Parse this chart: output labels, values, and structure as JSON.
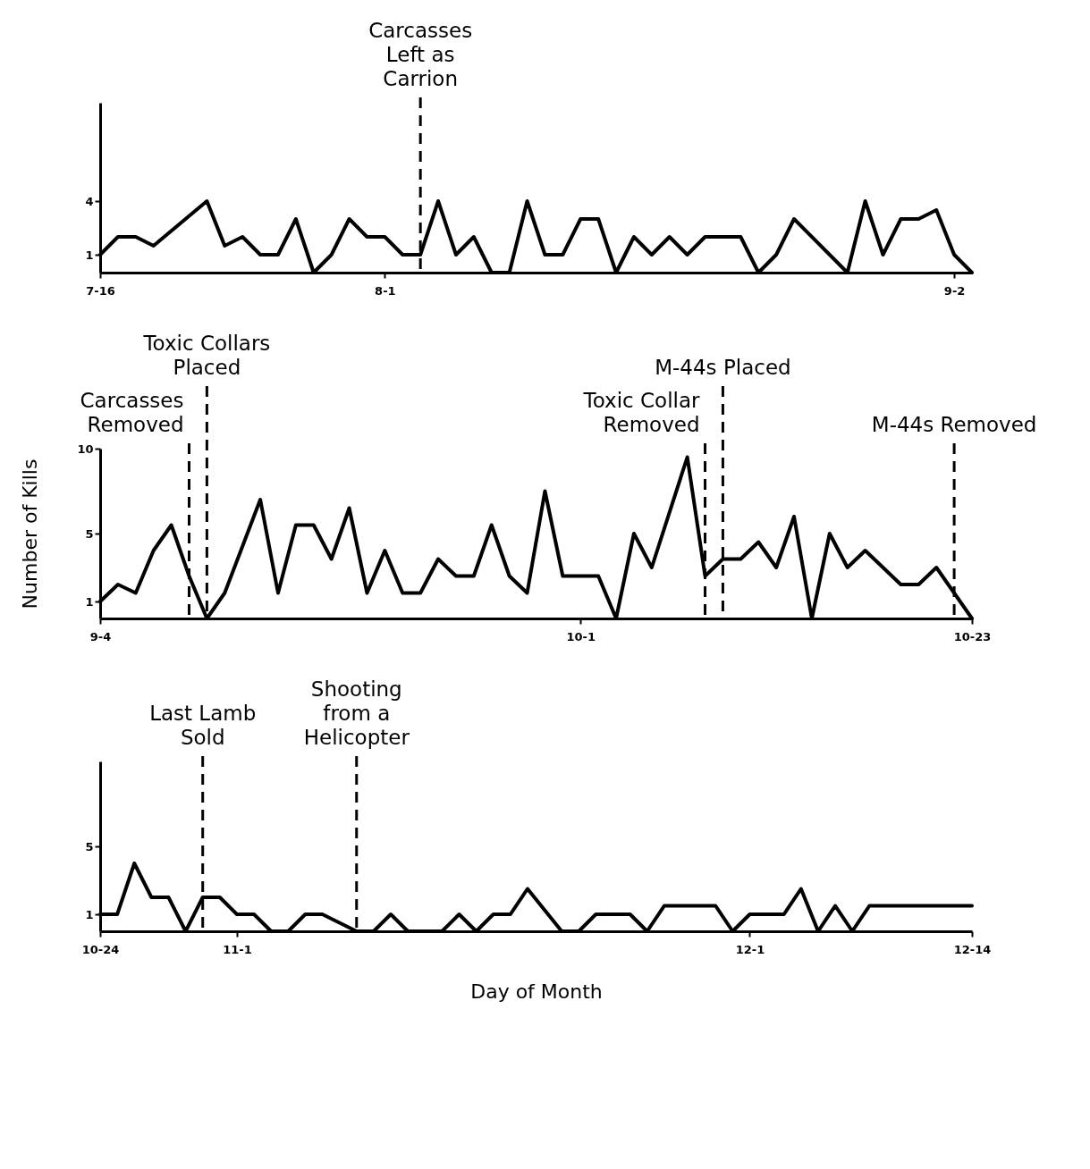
{
  "chart_data": [
    {
      "type": "line",
      "color": "#000000",
      "x": [
        "--07-16",
        "--07-17",
        "--07-18",
        "--07-19",
        "--07-22",
        "--07-23",
        "--07-24",
        "--07-25",
        "--07-26",
        "--07-27",
        "--07-28",
        "--07-29",
        "--07-30",
        "--07-31",
        "--08-01",
        "--08-02",
        "--08-03",
        "--08-04",
        "--08-05",
        "--08-06",
        "--08-07",
        "--08-08",
        "--08-09",
        "--08-10",
        "--08-11",
        "--08-12",
        "--08-13",
        "--08-14",
        "--08-15",
        "--08-16",
        "--08-17",
        "--08-18",
        "--08-19",
        "--08-21",
        "--08-22",
        "--08-23",
        "--08-24",
        "--08-27",
        "--08-28",
        "--08-29",
        "--08-30",
        "--08-31",
        "--09-01",
        "--09-02",
        "--09-03"
      ],
      "values": [
        1,
        2,
        2,
        1.5,
        4,
        1.5,
        2,
        1,
        1,
        3,
        0,
        1,
        3,
        2,
        2,
        1,
        1,
        4,
        1,
        2,
        0,
        0,
        4,
        1,
        1,
        3,
        3,
        0,
        2,
        1,
        2,
        1,
        2,
        2,
        0,
        1,
        3,
        0,
        4,
        1,
        3,
        3,
        3.5,
        1,
        0
      ],
      "xlim": [
        "--07-16",
        "--09-03"
      ],
      "xticks": [
        {
          "value": "--07-16",
          "label": "7-16"
        },
        {
          "value": "--08-01",
          "label": "8-1"
        },
        {
          "value": "--09-02",
          "label": "9-2"
        }
      ],
      "ylim": [
        0,
        9.5
      ],
      "yticks": [
        1,
        4
      ],
      "ref_lines": [
        {
          "axis": "x",
          "value": "--08-03",
          "label": "Carcasses\nLeft as\nCarrion",
          "line_style": "dashed"
        }
      ]
    },
    {
      "type": "line",
      "color": "#000000",
      "ylabel": "Number of Kills",
      "x": [
        "--09-04",
        "--09-05",
        "--09-06",
        "--09-07",
        "--09-08",
        "--09-09",
        "--09-10",
        "--09-11",
        "--09-13",
        "--09-14",
        "--09-15",
        "--09-16",
        "--09-17",
        "--09-18",
        "--09-19",
        "--09-20",
        "--09-21",
        "--09-22",
        "--09-23",
        "--09-24",
        "--09-25",
        "--09-26",
        "--09-27",
        "--09-28",
        "--09-29",
        "--09-30",
        "--10-02",
        "--10-03",
        "--10-04",
        "--10-05",
        "--10-07",
        "--10-08",
        "--10-09",
        "--10-10",
        "--10-11",
        "--10-12",
        "--10-13",
        "--10-14",
        "--10-15",
        "--10-16",
        "--10-17",
        "--10-19",
        "--10-20",
        "--10-21",
        "--10-23"
      ],
      "values": [
        1,
        2,
        1.5,
        4,
        5.5,
        2.5,
        0,
        1.5,
        7,
        1.5,
        5.5,
        5.5,
        3.5,
        6.5,
        1.5,
        4,
        1.5,
        1.5,
        3.5,
        2.5,
        2.5,
        5.5,
        2.5,
        1.5,
        7.5,
        2.5,
        2.5,
        0,
        5,
        3,
        9.5,
        2.5,
        3.5,
        3.5,
        4.5,
        3,
        6,
        0,
        5,
        3,
        4,
        2,
        2,
        3,
        0
      ],
      "xlim": [
        "--09-04",
        "--10-23"
      ],
      "xticks": [
        {
          "value": "--09-04",
          "label": "9-4"
        },
        {
          "value": "--10-01",
          "label": "10-1"
        },
        {
          "value": "--10-23",
          "label": "10-23"
        }
      ],
      "ylim": [
        0,
        10
      ],
      "yticks": [
        1,
        5,
        10
      ],
      "ref_lines": [
        {
          "axis": "x",
          "value": "--09-09",
          "label": "Carcasses\nRemoved",
          "line_style": "dashed"
        },
        {
          "axis": "x",
          "value": "--09-10",
          "label": "Toxic Collars\nPlaced",
          "line_style": "dashed"
        },
        {
          "axis": "x",
          "value": "--10-08",
          "label": "Toxic Collar\nRemoved",
          "line_style": "dashed"
        },
        {
          "axis": "x",
          "value": "--10-09",
          "label": "M-44s Placed",
          "line_style": "dashed"
        },
        {
          "axis": "x",
          "value": "--10-22",
          "label": "M-44s  Removed",
          "line_style": "dashed"
        }
      ]
    },
    {
      "type": "line",
      "color": "#000000",
      "xlabel": "Day of Month",
      "x": [
        "--10-24",
        "--10-25",
        "--10-26",
        "--10-27",
        "--10-28",
        "--10-29",
        "--10-30",
        "--10-31",
        "--11-01",
        "--11-02",
        "--11-03",
        "--11-04",
        "--11-05",
        "--11-06",
        "--11-08",
        "--11-09",
        "--11-10",
        "--11-11",
        "--11-13",
        "--11-14",
        "--11-15",
        "--11-16",
        "--11-17",
        "--11-18",
        "--11-20",
        "--11-21",
        "--11-22",
        "--11-24",
        "--11-25",
        "--11-26",
        "--11-29",
        "--11-30",
        "--12-01",
        "--12-03",
        "--12-04",
        "--12-05",
        "--12-06",
        "--12-07",
        "--12-08",
        "--12-14"
      ],
      "values": [
        1,
        1,
        4,
        2,
        2,
        0,
        2,
        2,
        1,
        1,
        0,
        0,
        1,
        1,
        0,
        0,
        1,
        0,
        0,
        1,
        0,
        1,
        1,
        2.5,
        0,
        0,
        1,
        1,
        0,
        1.5,
        1.5,
        0,
        1,
        1,
        2.5,
        0,
        1.5,
        0,
        1.5,
        1.5
      ],
      "xlim": [
        "--10-24",
        "--12-14"
      ],
      "xticks": [
        {
          "value": "--10-24",
          "label": "10-24"
        },
        {
          "value": "--11-01",
          "label": "11-1"
        },
        {
          "value": "--12-01",
          "label": "12-1"
        },
        {
          "value": "--12-14",
          "label": "12-14"
        }
      ],
      "ylim": [
        0,
        10
      ],
      "yticks": [
        1,
        5
      ],
      "ref_lines": [
        {
          "axis": "x",
          "value": "--10-30",
          "label": "Last Lamb\nSold",
          "line_style": "dashed"
        },
        {
          "axis": "x",
          "value": "--11-08",
          "label": "Shooting\nfrom a\nHelicopter",
          "line_style": "dashed"
        }
      ]
    }
  ]
}
